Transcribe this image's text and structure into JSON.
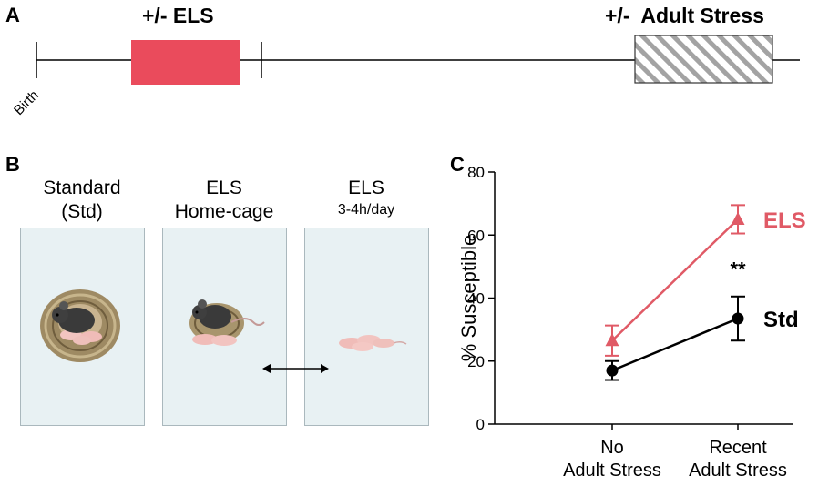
{
  "panel_a": {
    "letter": "A",
    "els_label": "+/- ELS",
    "adult_label": "+/-  Adult Stress",
    "birth_label": "Birth",
    "els_color": "#ea4b5c",
    "adult_hatch_color": "#9a9a9a"
  },
  "panel_b": {
    "letter": "B",
    "cages": [
      {
        "caption_line1": "Standard",
        "caption_line2": "(Std)"
      },
      {
        "caption_line1": "ELS",
        "caption_line2": "Home-cage"
      },
      {
        "caption_line1": "ELS",
        "caption_line2": "3-4h/day"
      }
    ],
    "cage_color": "#e8f1f3"
  },
  "panel_c": {
    "letter": "C",
    "significance": "**"
  },
  "chart_data": {
    "type": "line",
    "ylabel": "% Susceptible",
    "xlabel": "",
    "ylim": [
      0,
      80
    ],
    "yticks": [
      0,
      20,
      40,
      60,
      80
    ],
    "categories": [
      {
        "line1": "No",
        "line2": "Adult Stress"
      },
      {
        "line1": "Recent",
        "line2": "Adult Stress"
      }
    ],
    "series": [
      {
        "name": "ELS",
        "color": "#e05a66",
        "marker": "triangle",
        "values": [
          26.5,
          65
        ],
        "err": [
          4.8,
          4.5
        ]
      },
      {
        "name": "Std",
        "color": "#000000",
        "marker": "circle",
        "values": [
          17,
          33.5
        ],
        "err": [
          3,
          7
        ]
      }
    ]
  }
}
